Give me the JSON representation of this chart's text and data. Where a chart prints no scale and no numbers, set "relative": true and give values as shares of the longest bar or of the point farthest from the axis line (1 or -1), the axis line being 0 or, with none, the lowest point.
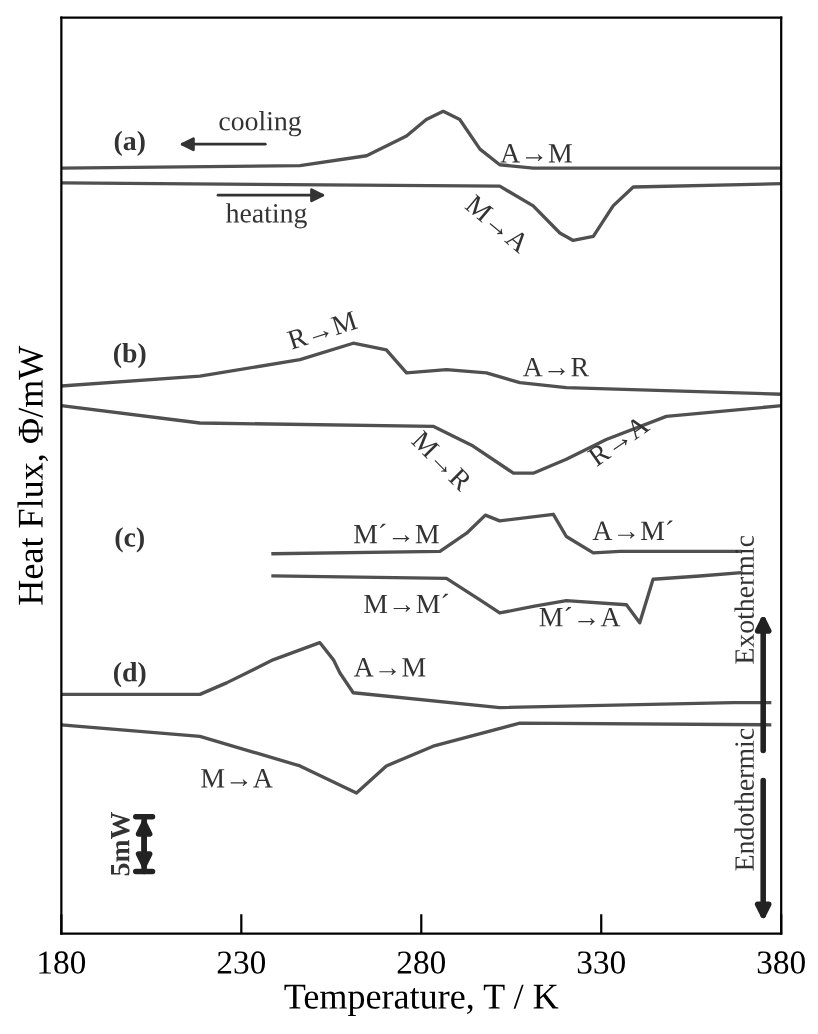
{
  "chart_data": {
    "type": "line",
    "relative": true,
    "xlabel": "Temperature, T / K",
    "ylabel": "Heat Flux, Φ/mW",
    "xlim": [
      180,
      380
    ],
    "xticks": [
      180,
      230,
      280,
      330,
      380
    ],
    "grid": false,
    "legend": false,
    "marker": "none",
    "line_style": "solid",
    "series": [
      {
        "color": "#505050",
        "x": [
          180,
          246.3,
          264.8,
          275.9,
          281.4,
          286.1,
          290.7,
          296.3,
          301.8,
          311.1,
          380
        ],
        "values": [
          0.931,
          0.934,
          0.946,
          0.97,
          0.99,
          1,
          0.99,
          0.954,
          0.935,
          0.931,
          0.931
        ]
      },
      {
        "color": "#505050",
        "x": [
          180,
          301.8,
          311.1,
          318.5,
          322.2,
          327.8,
          333.3,
          338.9,
          380
        ],
        "values": [
          0.913,
          0.909,
          0.885,
          0.852,
          0.843,
          0.848,
          0.885,
          0.908,
          0.912
        ]
      },
      {
        "color": "#505050",
        "x": [
          180,
          218.5,
          246.3,
          261.1,
          270.3,
          275.9,
          287,
          298.1,
          307.4,
          320.3,
          380
        ],
        "values": [
          0.666,
          0.678,
          0.698,
          0.718,
          0.71,
          0.682,
          0.686,
          0.682,
          0.67,
          0.664,
          0.656
        ]
      },
      {
        "color": "#505050",
        "x": [
          180,
          218.5,
          283.3,
          294.4,
          305.6,
          311.1,
          320.3,
          331.4,
          348.1,
          380
        ],
        "values": [
          0.642,
          0.621,
          0.617,
          0.593,
          0.56,
          0.56,
          0.577,
          0.601,
          0.629,
          0.642
        ]
      },
      {
        "color": "#505050",
        "x": [
          238.8,
          285.2,
          292.6,
          297.8,
          301.8,
          316.7,
          320.3,
          327.8,
          335.2,
          368.5
        ],
        "values": [
          0.462,
          0.465,
          0.487,
          0.509,
          0.502,
          0.51,
          0.483,
          0.463,
          0.465,
          0.465
        ]
      },
      {
        "color": "#505050",
        "x": [
          238.8,
          287,
          296.3,
          301.8,
          311.1,
          320.3,
          337,
          340.7,
          344.4,
          357.4,
          368.5
        ],
        "values": [
          0.435,
          0.432,
          0.406,
          0.39,
          0.398,
          0.405,
          0.4,
          0.378,
          0.431,
          0.435,
          0.439
        ]
      },
      {
        "color": "#505050",
        "x": [
          180,
          218.5,
          225.9,
          238.8,
          251.8,
          255.6,
          257.4,
          261.1,
          301.8,
          366.7,
          376.8
        ],
        "values": [
          0.291,
          0.291,
          0.305,
          0.333,
          0.354,
          0.333,
          0.317,
          0.293,
          0.275,
          0.281,
          0.281
        ]
      },
      {
        "color": "#505050",
        "x": [
          180,
          218.5,
          246.3,
          262,
          270.3,
          283.3,
          307.4,
          376.8
        ],
        "values": [
          0.254,
          0.24,
          0.204,
          0.171,
          0.204,
          0.228,
          0.256,
          0.254
        ]
      }
    ],
    "annotations": [
      "(a)",
      "cooling",
      "heating",
      "A→M",
      "M→A",
      "(b)",
      "R→M",
      "A→R",
      "M→R",
      "R→A",
      "(c)",
      "M´→M",
      "A→M´",
      "M→M´",
      "M´→A",
      "(d)",
      "A→M",
      "M→A",
      "5mW",
      "Exothermic",
      "Endothermic"
    ]
  }
}
